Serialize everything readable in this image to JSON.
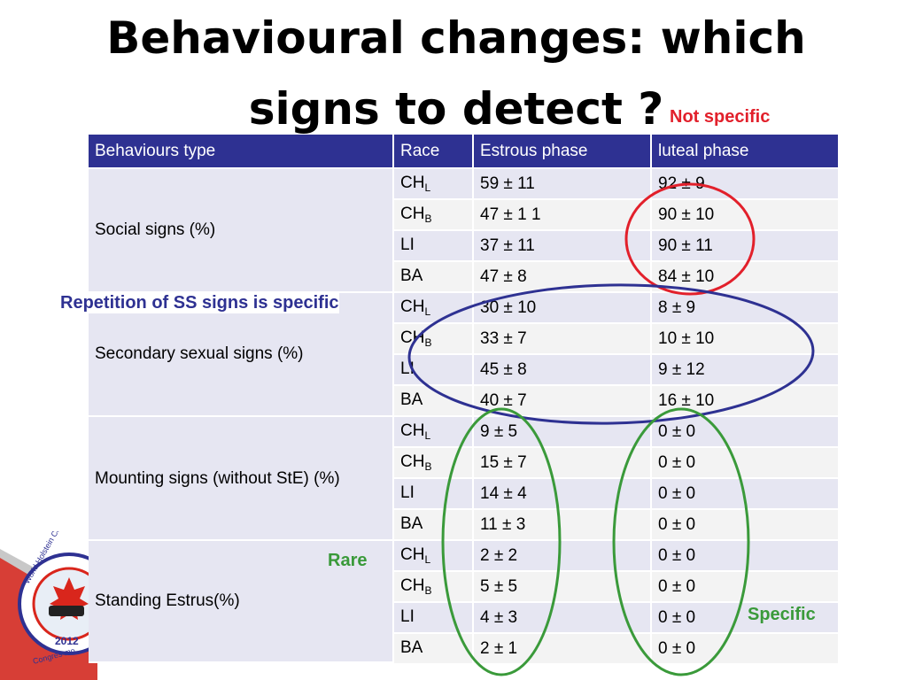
{
  "title": {
    "line1": "Behavioural changes: which",
    "line2": "signs to detect ?"
  },
  "annotations": {
    "not_specific": "Not specific",
    "repetition": "Repetition of SS signs is specific",
    "rare": "Rare",
    "specific": "Specific"
  },
  "logo": {
    "text_top": "World Holstein Con",
    "text_year": "2012",
    "text_bottom": "Congrès mo"
  },
  "table": {
    "headers": [
      "Behaviours type",
      "Race",
      "Estrous phase",
      "luteal phase"
    ],
    "groups": [
      {
        "label": "Social signs (%)",
        "rows": [
          {
            "race": "CH",
            "race_sub": "L",
            "estrous": "59 ± 11",
            "luteal": "92 ± 9"
          },
          {
            "race": "CH",
            "race_sub": "B",
            "estrous": "47 ± 1 1",
            "luteal": "90 ± 10"
          },
          {
            "race": "LI",
            "race_sub": "",
            "estrous": "37 ± 11",
            "luteal": "90 ± 11"
          },
          {
            "race": "BA",
            "race_sub": "",
            "estrous": "47 ± 8",
            "luteal": "84 ± 10"
          }
        ]
      },
      {
        "label": "Secondary sexual signs (%)",
        "rows": [
          {
            "race": "CH",
            "race_sub": "L",
            "estrous": "30 ± 10",
            "luteal": "8 ± 9"
          },
          {
            "race": "CH",
            "race_sub": "B",
            "estrous": "33 ± 7",
            "luteal": "10 ± 10"
          },
          {
            "race": "LI",
            "race_sub": "",
            "estrous": "45 ± 8",
            "luteal": "9 ± 12"
          },
          {
            "race": "BA",
            "race_sub": "",
            "estrous": "40 ± 7",
            "luteal": "16 ± 10"
          }
        ]
      },
      {
        "label": "Mounting signs (without StE) (%)",
        "rows": [
          {
            "race": "CH",
            "race_sub": "L",
            "estrous": "9 ± 5",
            "luteal": "0 ± 0"
          },
          {
            "race": "CH",
            "race_sub": "B",
            "estrous": "15 ± 7",
            "luteal": "0 ± 0"
          },
          {
            "race": "LI",
            "race_sub": "",
            "estrous": "14 ± 4",
            "luteal": "0 ± 0"
          },
          {
            "race": "BA",
            "race_sub": "",
            "estrous": "11 ± 3",
            "luteal": "0 ± 0"
          }
        ]
      },
      {
        "label": "Standing Estrus(%)",
        "rows": [
          {
            "race": "CH",
            "race_sub": "L",
            "estrous": "2 ± 2",
            "luteal": "0 ± 0"
          },
          {
            "race": "CH",
            "race_sub": "B",
            "estrous": "5 ± 5",
            "luteal": "0 ± 0"
          },
          {
            "race": "LI",
            "race_sub": "",
            "estrous": "4 ± 3",
            "luteal": "0 ± 0"
          },
          {
            "race": "BA",
            "race_sub": "",
            "estrous": "2 ± 1",
            "luteal": "0 ± 0"
          }
        ]
      }
    ]
  },
  "colors": {
    "header_bg": "#2e3192",
    "red_annotation": "#e2202b",
    "blue_annotation": "#2e3192",
    "green_annotation": "#3a9a3a",
    "logo_red": "#d9261c"
  }
}
